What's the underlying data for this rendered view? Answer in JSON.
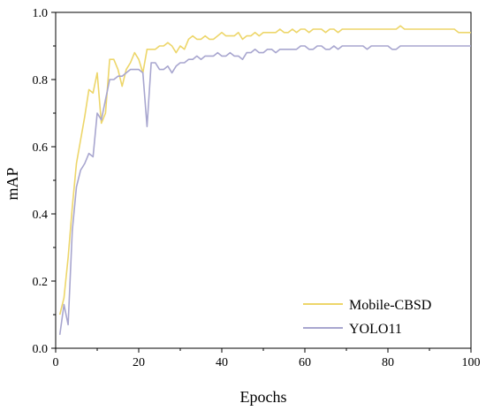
{
  "chart_data": {
    "type": "line",
    "title": "",
    "xlabel": "Epochs",
    "ylabel": "mAP",
    "xlim": [
      0,
      100
    ],
    "ylim": [
      0.0,
      1.0
    ],
    "xticks": [
      0,
      20,
      40,
      60,
      80,
      100
    ],
    "yticks": [
      0.0,
      0.2,
      0.4,
      0.6,
      0.8,
      1.0
    ],
    "xtick_labels": [
      "0",
      "20",
      "40",
      "60",
      "80",
      "100"
    ],
    "ytick_labels": [
      "0.0",
      "0.2",
      "0.4",
      "0.6",
      "0.8",
      "1.0"
    ],
    "grid": false,
    "legend_position": "bottom-right",
    "series": [
      {
        "name": "Mobile-CBSD",
        "color": "#EDD66A",
        "x": [
          1,
          2,
          3,
          4,
          5,
          6,
          7,
          8,
          9,
          10,
          11,
          12,
          13,
          14,
          15,
          16,
          17,
          18,
          19,
          20,
          21,
          22,
          23,
          24,
          25,
          26,
          27,
          28,
          29,
          30,
          31,
          32,
          33,
          34,
          35,
          36,
          37,
          38,
          39,
          40,
          41,
          42,
          43,
          44,
          45,
          46,
          47,
          48,
          49,
          50,
          51,
          52,
          53,
          54,
          55,
          56,
          57,
          58,
          59,
          60,
          61,
          62,
          63,
          64,
          65,
          66,
          67,
          68,
          69,
          70,
          71,
          72,
          73,
          74,
          75,
          76,
          77,
          78,
          79,
          80,
          81,
          82,
          83,
          84,
          85,
          86,
          87,
          88,
          89,
          90,
          91,
          92,
          93,
          94,
          95,
          96,
          97,
          98,
          99,
          100
        ],
        "values": [
          0.1,
          0.15,
          0.27,
          0.42,
          0.55,
          0.62,
          0.69,
          0.77,
          0.76,
          0.82,
          0.67,
          0.7,
          0.86,
          0.86,
          0.83,
          0.78,
          0.83,
          0.85,
          0.88,
          0.86,
          0.82,
          0.89,
          0.89,
          0.89,
          0.9,
          0.9,
          0.91,
          0.9,
          0.88,
          0.9,
          0.89,
          0.92,
          0.93,
          0.92,
          0.92,
          0.93,
          0.92,
          0.92,
          0.93,
          0.94,
          0.93,
          0.93,
          0.93,
          0.94,
          0.92,
          0.93,
          0.93,
          0.94,
          0.93,
          0.94,
          0.94,
          0.94,
          0.94,
          0.95,
          0.94,
          0.94,
          0.95,
          0.94,
          0.95,
          0.95,
          0.94,
          0.95,
          0.95,
          0.95,
          0.94,
          0.95,
          0.95,
          0.94,
          0.95,
          0.95,
          0.95,
          0.95,
          0.95,
          0.95,
          0.95,
          0.95,
          0.95,
          0.95,
          0.95,
          0.95,
          0.95,
          0.95,
          0.96,
          0.95,
          0.95,
          0.95,
          0.95,
          0.95,
          0.95,
          0.95,
          0.95,
          0.95,
          0.95,
          0.95,
          0.95,
          0.95,
          0.94,
          0.94,
          0.94,
          0.94
        ]
      },
      {
        "name": "YOLO11",
        "color": "#A8A6CF",
        "x": [
          1,
          2,
          3,
          4,
          5,
          6,
          7,
          8,
          9,
          10,
          11,
          12,
          13,
          14,
          15,
          16,
          17,
          18,
          19,
          20,
          21,
          22,
          23,
          24,
          25,
          26,
          27,
          28,
          29,
          30,
          31,
          32,
          33,
          34,
          35,
          36,
          37,
          38,
          39,
          40,
          41,
          42,
          43,
          44,
          45,
          46,
          47,
          48,
          49,
          50,
          51,
          52,
          53,
          54,
          55,
          56,
          57,
          58,
          59,
          60,
          61,
          62,
          63,
          64,
          65,
          66,
          67,
          68,
          69,
          70,
          71,
          72,
          73,
          74,
          75,
          76,
          77,
          78,
          79,
          80,
          81,
          82,
          83,
          84,
          85,
          86,
          87,
          88,
          89,
          90,
          91,
          92,
          93,
          94,
          95,
          96,
          97,
          98,
          99,
          100
        ],
        "values": [
          0.04,
          0.13,
          0.07,
          0.35,
          0.48,
          0.53,
          0.55,
          0.58,
          0.57,
          0.7,
          0.68,
          0.74,
          0.8,
          0.8,
          0.81,
          0.81,
          0.82,
          0.83,
          0.83,
          0.83,
          0.82,
          0.66,
          0.85,
          0.85,
          0.83,
          0.83,
          0.84,
          0.82,
          0.84,
          0.85,
          0.85,
          0.86,
          0.86,
          0.87,
          0.86,
          0.87,
          0.87,
          0.87,
          0.88,
          0.87,
          0.87,
          0.88,
          0.87,
          0.87,
          0.86,
          0.88,
          0.88,
          0.89,
          0.88,
          0.88,
          0.89,
          0.89,
          0.88,
          0.89,
          0.89,
          0.89,
          0.89,
          0.89,
          0.9,
          0.9,
          0.89,
          0.89,
          0.9,
          0.9,
          0.89,
          0.89,
          0.9,
          0.89,
          0.9,
          0.9,
          0.9,
          0.9,
          0.9,
          0.9,
          0.89,
          0.9,
          0.9,
          0.9,
          0.9,
          0.9,
          0.89,
          0.89,
          0.9,
          0.9,
          0.9,
          0.9,
          0.9,
          0.9,
          0.9,
          0.9,
          0.9,
          0.9,
          0.9,
          0.9,
          0.9,
          0.9,
          0.9,
          0.9,
          0.9,
          0.9
        ]
      }
    ]
  }
}
